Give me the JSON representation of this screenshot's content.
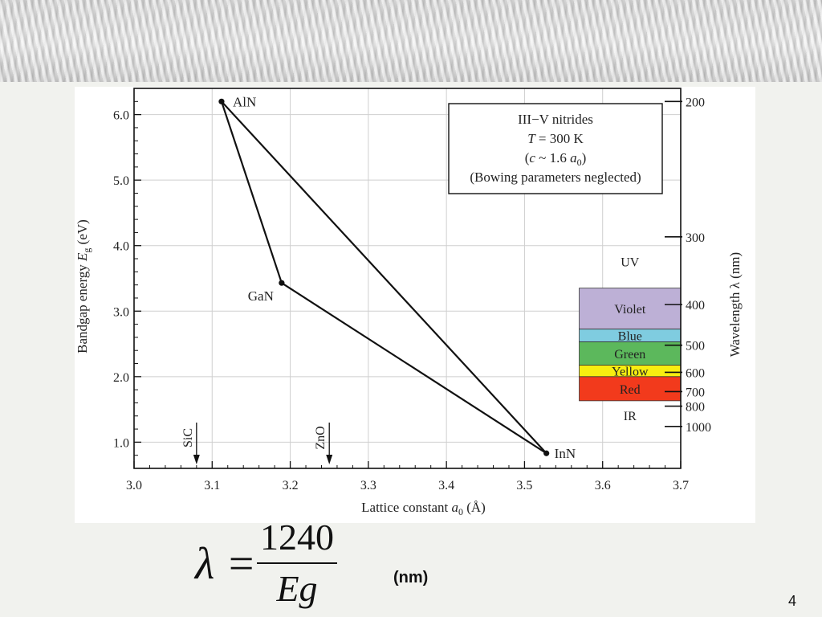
{
  "chart_data": {
    "type": "scatter",
    "title": "",
    "xlabel": "Lattice constant a0 (Å)",
    "ylabel": "Bandgap energy Eg (eV)",
    "y2label": "Wavelength λ (nm)",
    "xlim": [
      3.0,
      3.7
    ],
    "ylim": [
      0.6,
      6.4
    ],
    "grid": true,
    "x_ticks": [
      "3.0",
      "3.1",
      "3.2",
      "3.3",
      "3.4",
      "3.5",
      "3.6",
      "3.7"
    ],
    "y_ticks": [
      "1.0",
      "2.0",
      "3.0",
      "4.0",
      "5.0",
      "6.0"
    ],
    "wavelength_ticks": [
      "200",
      "300",
      "400",
      "500",
      "600",
      "700",
      "800",
      "1000"
    ],
    "points": [
      {
        "label": "AlN",
        "x": 3.112,
        "y": 6.2
      },
      {
        "label": "GaN",
        "x": 3.189,
        "y": 3.43
      },
      {
        "label": "InN",
        "x": 3.528,
        "y": 0.83
      }
    ],
    "edges": [
      [
        "AlN",
        "GaN"
      ],
      [
        "GaN",
        "InN"
      ],
      [
        "InN",
        "AlN"
      ]
    ],
    "substrates": [
      {
        "label": "SiC",
        "x": 3.08
      },
      {
        "label": "ZnO",
        "x": 3.25
      }
    ],
    "info_box": {
      "line1": "III−V nitrides",
      "line2_italic": "T",
      "line2_rest": " = 300 K",
      "line3_a": "(",
      "line3_c": "c",
      "line3_b": " ~ 1.6 ",
      "line3_a0": "a",
      "line3_sub": "0",
      "line3_end": ")",
      "line4": "(Bowing parameters neglected)"
    },
    "spectrum": [
      {
        "label": "UV",
        "color": "",
        "from_nm": 200,
        "to_nm": 370
      },
      {
        "label": "Violet",
        "color": "#bdb0d6",
        "from_nm": 370,
        "to_nm": 455
      },
      {
        "label": "Blue",
        "color": "#7fcce0",
        "from_nm": 455,
        "to_nm": 490
      },
      {
        "label": "Green",
        "color": "#5cb85c",
        "from_nm": 490,
        "to_nm": 570
      },
      {
        "label": "Yellow",
        "color": "#f7ee10",
        "from_nm": 570,
        "to_nm": 620
      },
      {
        "label": "Red",
        "color": "#f23a1c",
        "from_nm": 620,
        "to_nm": 760
      },
      {
        "label": "IR",
        "color": "",
        "from_nm": 760,
        "to_nm": 1000
      }
    ]
  },
  "formula": {
    "lhs": "λ =",
    "numerator": "1240",
    "denominator": "Eg",
    "unit": "(nm)"
  },
  "page_number": "4"
}
